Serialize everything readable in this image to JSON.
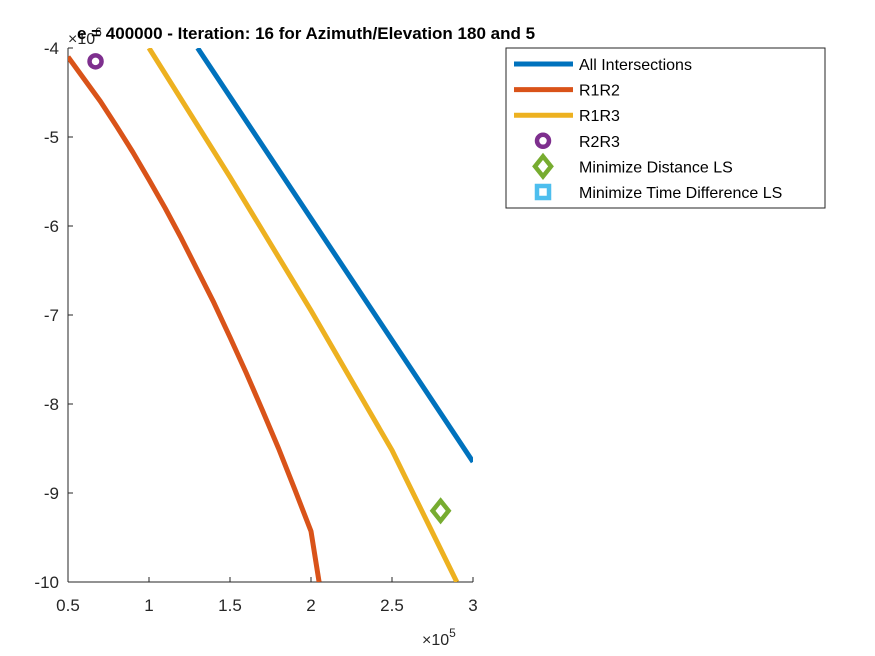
{
  "chart_data": {
    "type": "line",
    "title": "e = 400000 - Iteration: 16 for Azimuth/Elevation 180 and 5",
    "xlabel": "",
    "ylabel": "",
    "xlim": [
      0.5,
      3.0
    ],
    "ylim": [
      -10,
      -4
    ],
    "x_ticks": [
      0.5,
      1,
      1.5,
      2,
      2.5,
      3
    ],
    "x_tick_labels": [
      "0.5",
      "1",
      "1.5",
      "2",
      "2.5",
      "3"
    ],
    "y_ticks": [
      -10,
      -9,
      -8,
      -7,
      -6,
      -5,
      -4
    ],
    "y_tick_labels": [
      "-10",
      "-9",
      "-8",
      "-7",
      "-6",
      "-5",
      "-4"
    ],
    "x_exponent": {
      "base": "×10",
      "power": "5"
    },
    "y_exponent": {
      "base": "×10",
      "power": "6"
    },
    "grid": false,
    "legend_location": "top-right (outside axes)",
    "series": [
      {
        "name": "All Intersections",
        "kind": "line",
        "color": "#0072BD",
        "x": [
          1.3,
          3.0
        ],
        "y": [
          -4.0,
          -8.65
        ]
      },
      {
        "name": "R1R2",
        "kind": "line",
        "color": "#D95319",
        "x": [
          0.5,
          0.6,
          0.7,
          0.8,
          0.9,
          1.0,
          1.1,
          1.2,
          1.3,
          1.4,
          1.5,
          1.6,
          1.7,
          1.8,
          1.9,
          2.0,
          2.05
        ],
        "y": [
          -4.1,
          -4.35,
          -4.6,
          -4.88,
          -5.17,
          -5.48,
          -5.8,
          -6.14,
          -6.5,
          -6.86,
          -7.25,
          -7.65,
          -8.07,
          -8.5,
          -8.96,
          -9.43,
          -10.0
        ]
      },
      {
        "name": "R1R3",
        "kind": "line",
        "color": "#EDB120",
        "x": [
          1.0,
          1.5,
          2.0,
          2.5,
          2.9
        ],
        "y": [
          -4.0,
          -5.45,
          -6.95,
          -8.52,
          -10.0
        ]
      },
      {
        "name": "R2R3",
        "kind": "marker",
        "marker": "circle",
        "color": "#7E2F8E",
        "x": [
          0.67
        ],
        "y": [
          -4.15
        ]
      },
      {
        "name": "Minimize Distance LS",
        "kind": "marker",
        "marker": "diamond",
        "color": "#77AC30",
        "x": [
          2.8
        ],
        "y": [
          -9.2
        ]
      },
      {
        "name": "Minimize Time Difference LS",
        "kind": "marker",
        "marker": "square",
        "color": "#4DBEEE",
        "x": [],
        "y": []
      }
    ]
  }
}
